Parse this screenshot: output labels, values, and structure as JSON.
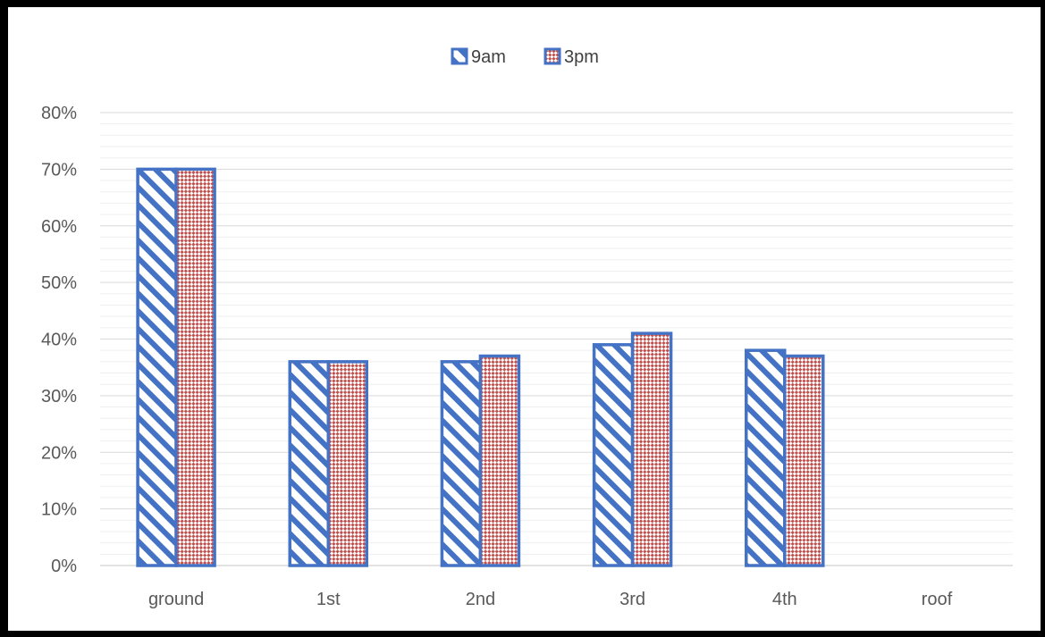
{
  "chart_data": {
    "type": "bar",
    "categories": [
      "ground",
      "1st",
      "2nd",
      "3rd",
      "4th",
      "roof"
    ],
    "series": [
      {
        "name": "9am",
        "values": [
          70,
          36,
          36,
          39,
          38,
          null
        ],
        "color": "#4472c4",
        "pattern": "diagonal-stripes"
      },
      {
        "name": "3pm",
        "values": [
          70,
          36,
          37,
          41,
          37,
          null
        ],
        "color": "#c0504d",
        "pattern": "diagonal-checker"
      }
    ],
    "y_tick_labels": [
      "0%",
      "10%",
      "20%",
      "30%",
      "40%",
      "50%",
      "60%",
      "70%",
      "80%"
    ],
    "ylim": [
      0,
      80
    ],
    "y_unit": "%",
    "grid": true,
    "legend_position": "top"
  }
}
